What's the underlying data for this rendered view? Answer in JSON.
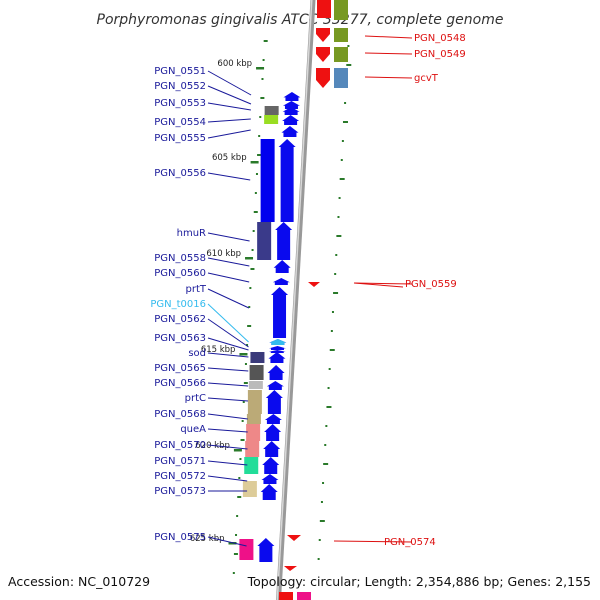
{
  "title": "Porphyromonas gingivalis ATCC 33277, complete genome",
  "footer": {
    "accession": "Accession: NC_010729",
    "topology": "Topology: circular; Length: 2,354,886 bp; Genes: 2,155"
  },
  "colors": {
    "backbone": "#b0b0b0",
    "tick": "#2a7a2a",
    "plus_strand_arrow": "#0a0aee",
    "minus_strand_arrow": "#ee1111",
    "plus_label": "#1a1a9a",
    "minus_label": "#dd1111",
    "trna_label": "#33bbee"
  },
  "ticks": [
    {
      "label": "600 kbp"
    },
    {
      "label": "605 kbp"
    },
    {
      "label": "610 kbp"
    },
    {
      "label": "615 kbp"
    },
    {
      "label": "620 kbp"
    },
    {
      "label": "625 kbp"
    }
  ],
  "plus_genes": [
    {
      "label": "PGN_0551",
      "color": "#0000ee"
    },
    {
      "label": "PGN_0552",
      "color": "#0000ee"
    },
    {
      "label": "PGN_0553",
      "color": "#666666"
    },
    {
      "label": "PGN_0554",
      "color": "#99dd22"
    },
    {
      "label": "PGN_0555",
      "color": "#0000ee"
    },
    {
      "label": "PGN_0556",
      "color": "#0000ee"
    },
    {
      "label": "hmuR",
      "color": "#3a3a8a"
    },
    {
      "label": "PGN_0558",
      "color": "#0000ee"
    },
    {
      "label": "PGN_0560",
      "color": "#0000ee"
    },
    {
      "label": "prtT",
      "color": "#0000ee"
    },
    {
      "label": "PGN_t0016",
      "color": "#33bbee"
    },
    {
      "label": "PGN_0562",
      "color": "#0000ee"
    },
    {
      "label": "PGN_0563",
      "color": "#0000ee"
    },
    {
      "label": "sod",
      "color": "#3a3a7a"
    },
    {
      "label": "PGN_0565",
      "color": "#555555"
    },
    {
      "label": "PGN_0566",
      "color": "#bbbbbb"
    },
    {
      "label": "prtC",
      "color": "#bbaa77"
    },
    {
      "label": "PGN_0568",
      "color": "#bbaa77"
    },
    {
      "label": "queA",
      "color": "#ee8888"
    },
    {
      "label": "PGN_0570",
      "color": "#ee8888"
    },
    {
      "label": "PGN_0571",
      "color": "#22dd99"
    },
    {
      "label": "PGN_0572",
      "color": "#0000ee"
    },
    {
      "label": "PGN_0573",
      "color": "#ddcc99"
    },
    {
      "label": "PGN_0575",
      "color": "#ee1188"
    }
  ],
  "minus_genes": [
    {
      "label": "PGN_0548",
      "color": "#ee1111",
      "cog_color": "#779922"
    },
    {
      "label": "PGN_0549",
      "color": "#ee1111",
      "cog_color": "#779922"
    },
    {
      "label": "gcvT",
      "color": "#ee1111",
      "cog_color": "#5588bb"
    },
    {
      "label": "PGN_0559",
      "color": "#ee1111"
    },
    {
      "label": "PGN_0574",
      "color": "#ee1111"
    }
  ]
}
